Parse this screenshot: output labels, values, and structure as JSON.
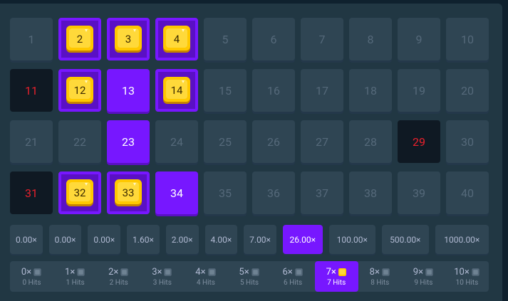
{
  "grid": {
    "cells": [
      {
        "label": "1",
        "state": "idle"
      },
      {
        "label": "2",
        "state": "gem"
      },
      {
        "label": "3",
        "state": "gem"
      },
      {
        "label": "4",
        "state": "gem"
      },
      {
        "label": "5",
        "state": "idle"
      },
      {
        "label": "6",
        "state": "idle"
      },
      {
        "label": "7",
        "state": "idle"
      },
      {
        "label": "8",
        "state": "idle"
      },
      {
        "label": "9",
        "state": "idle"
      },
      {
        "label": "10",
        "state": "idle"
      },
      {
        "label": "11",
        "state": "miss"
      },
      {
        "label": "12",
        "state": "gem"
      },
      {
        "label": "13",
        "state": "picked"
      },
      {
        "label": "14",
        "state": "gem"
      },
      {
        "label": "15",
        "state": "idle"
      },
      {
        "label": "16",
        "state": "idle"
      },
      {
        "label": "17",
        "state": "idle"
      },
      {
        "label": "18",
        "state": "idle"
      },
      {
        "label": "19",
        "state": "idle"
      },
      {
        "label": "20",
        "state": "idle"
      },
      {
        "label": "21",
        "state": "idle"
      },
      {
        "label": "22",
        "state": "idle"
      },
      {
        "label": "23",
        "state": "picked"
      },
      {
        "label": "24",
        "state": "idle"
      },
      {
        "label": "25",
        "state": "idle"
      },
      {
        "label": "26",
        "state": "idle"
      },
      {
        "label": "27",
        "state": "idle"
      },
      {
        "label": "28",
        "state": "idle"
      },
      {
        "label": "29",
        "state": "miss"
      },
      {
        "label": "30",
        "state": "idle"
      },
      {
        "label": "31",
        "state": "miss"
      },
      {
        "label": "32",
        "state": "gem"
      },
      {
        "label": "33",
        "state": "gem"
      },
      {
        "label": "34",
        "state": "picked"
      },
      {
        "label": "35",
        "state": "idle"
      },
      {
        "label": "36",
        "state": "idle"
      },
      {
        "label": "37",
        "state": "idle"
      },
      {
        "label": "38",
        "state": "idle"
      },
      {
        "label": "39",
        "state": "idle"
      },
      {
        "label": "40",
        "state": "idle"
      }
    ]
  },
  "multipliers": {
    "active": 7,
    "items": [
      "0.00×",
      "0.00×",
      "0.00×",
      "1.60×",
      "2.00×",
      "4.00×",
      "7.00×",
      "26.00×",
      "100.00×",
      "500.00×",
      "1000.00×"
    ]
  },
  "hits": {
    "active": 7,
    "items": [
      {
        "mult": "0×",
        "label": "0 Hits"
      },
      {
        "mult": "1×",
        "label": "1 Hits"
      },
      {
        "mult": "2×",
        "label": "2 Hits"
      },
      {
        "mult": "3×",
        "label": "3 Hits"
      },
      {
        "mult": "4×",
        "label": "4 Hits"
      },
      {
        "mult": "5×",
        "label": "5 Hits"
      },
      {
        "mult": "6×",
        "label": "6 Hits"
      },
      {
        "mult": "7×",
        "label": "7 Hits"
      },
      {
        "mult": "8×",
        "label": "8 Hits"
      },
      {
        "mult": "9×",
        "label": "9 Hits"
      },
      {
        "mult": "10×",
        "label": "10 Hits"
      }
    ]
  }
}
